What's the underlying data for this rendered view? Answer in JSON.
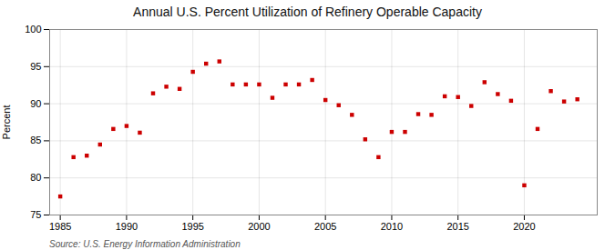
{
  "chart_data": {
    "type": "scatter",
    "title": "Annual U.S. Percent Utilization of Refinery Operable Capacity",
    "ylabel": "Percent",
    "annotation": "Source: U.S. Energy Information Administration",
    "x": [
      1985,
      1986,
      1987,
      1988,
      1989,
      1990,
      1991,
      1992,
      1993,
      1994,
      1995,
      1996,
      1997,
      1998,
      1999,
      2000,
      2001,
      2002,
      2003,
      2004,
      2005,
      2006,
      2007,
      2008,
      2009,
      2010,
      2011,
      2012,
      2013,
      2014,
      2015,
      2016,
      2017,
      2018,
      2019,
      2020,
      2021,
      2022,
      2023,
      2024
    ],
    "values": [
      77.5,
      82.8,
      83.0,
      84.5,
      86.6,
      87.0,
      86.1,
      91.4,
      92.3,
      92.0,
      94.3,
      95.4,
      95.7,
      92.6,
      92.6,
      92.6,
      90.8,
      92.6,
      92.6,
      93.2,
      90.5,
      89.8,
      88.5,
      85.2,
      82.8,
      86.2,
      86.2,
      88.6,
      88.5,
      91.0,
      90.9,
      89.7,
      92.9,
      91.3,
      90.4,
      79.0,
      86.6,
      91.7,
      90.3,
      90.6
    ],
    "xlim": [
      1984.2,
      2025.5
    ],
    "xticks": [
      1985,
      1990,
      1995,
      2000,
      2005,
      2010,
      2015,
      2020
    ],
    "ylim": [
      75,
      100
    ],
    "yticks": [
      75,
      80,
      85,
      90,
      95,
      100
    ],
    "color": "#cc0000",
    "marker": "square",
    "grid": true
  }
}
